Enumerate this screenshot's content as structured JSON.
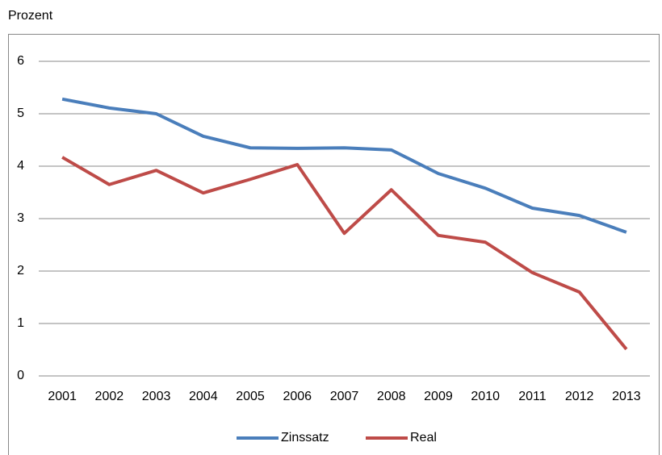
{
  "chart_data": {
    "type": "line",
    "y_label": "Prozent",
    "categories": [
      "2001",
      "2002",
      "2003",
      "2004",
      "2005",
      "2006",
      "2007",
      "2008",
      "2009",
      "2010",
      "2011",
      "2012",
      "2013"
    ],
    "series": [
      {
        "name": "Zinssatz",
        "color": "#4a7ebb",
        "values": [
          5.28,
          5.11,
          5.0,
          4.57,
          4.35,
          4.34,
          4.35,
          4.31,
          3.86,
          3.58,
          3.2,
          3.06,
          2.74
        ]
      },
      {
        "name": "Real",
        "color": "#be4b48",
        "values": [
          4.17,
          3.65,
          3.92,
          3.49,
          3.75,
          4.03,
          2.72,
          3.55,
          2.68,
          2.55,
          1.97,
          1.6,
          0.51
        ]
      }
    ],
    "ylim": [
      0,
      6
    ],
    "yticks": [
      0,
      1,
      2,
      3,
      4,
      5,
      6
    ],
    "grid": true,
    "legend": "bottom"
  }
}
